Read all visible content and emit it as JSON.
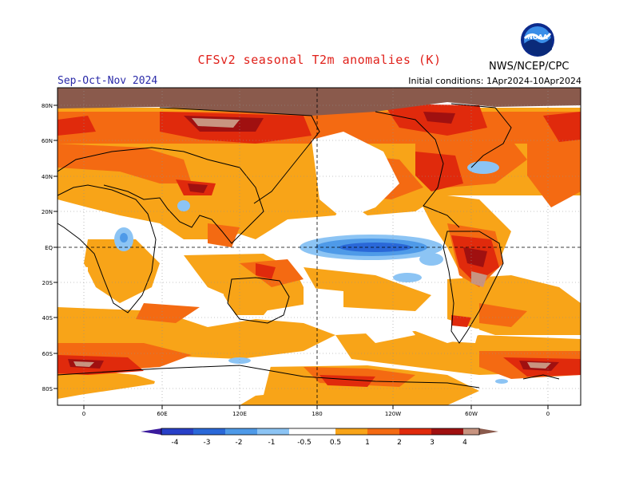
{
  "title": "CFSv2 seasonal T2m anomalies (K)",
  "season": "Sep-Oct-Nov 2024",
  "initial_conditions": "Initial conditions: 1Apr2024-10Apr2024",
  "agency": "NWS/NCEP/CPC",
  "logo_text": "NOAA",
  "lat_labels": [
    "80N",
    "60N",
    "40N",
    "20N",
    "EQ",
    "20S",
    "40S",
    "60S",
    "80S"
  ],
  "lon_labels": [
    "0",
    "60E",
    "120E",
    "180",
    "120W",
    "60W",
    "0"
  ],
  "legend": {
    "labels": [
      "-4",
      "-3",
      "-2",
      "-1",
      "-0.5",
      "0.5",
      "1",
      "2",
      "3",
      "4"
    ],
    "colors": {
      "below_-4": "#3a1a9c",
      "-4_-3": "#2840c8",
      "-3_-2": "#2a68d8",
      "-2_-1": "#4e9ae8",
      "-1_-0.5": "#8cc4f4",
      "-0.5_0.5": "#ffffff",
      "0.5_1": "#f8a418",
      "1_2": "#f46a12",
      "2_3": "#e02a0c",
      "3_4": "#a01010",
      "4_5": "#c89480",
      "above_5": "#8a5a4c"
    }
  },
  "map_colors": {
    "warm_05": "#f8a418",
    "warm_1": "#f46a12",
    "warm_2": "#e02a0c",
    "warm_3": "#a01010",
    "warm_4": "#c89480",
    "warm_5": "#8a5a4c",
    "cool_05": "#8cc4f4",
    "cool_1": "#4e9ae8",
    "cool_2": "#2a68d8",
    "ocean": "#ffffff",
    "coast": "#000000",
    "grid": "#909090"
  }
}
